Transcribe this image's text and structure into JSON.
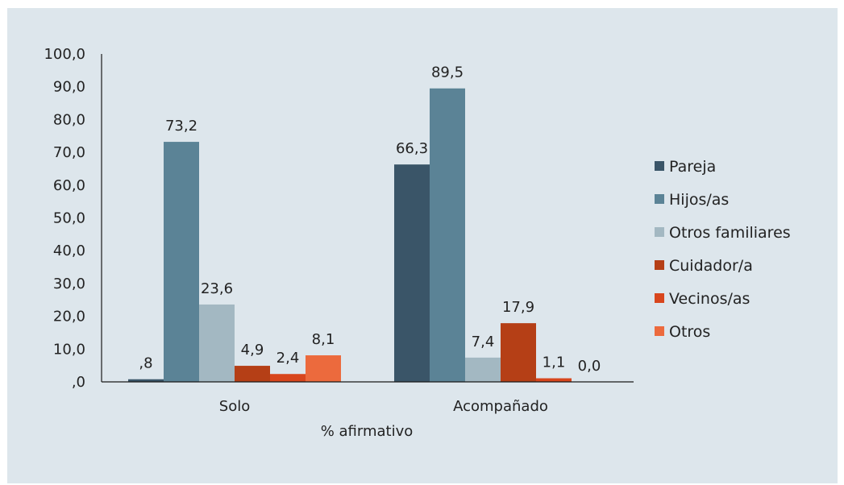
{
  "chart_data": {
    "type": "bar",
    "categories": [
      "Solo",
      "Acompañado"
    ],
    "series": [
      {
        "name": "Pareja",
        "values": [
          0.8,
          66.3
        ],
        "labels": [
          ",8",
          "66,3"
        ],
        "color": "#3a5568"
      },
      {
        "name": "Hijos/as",
        "values": [
          73.2,
          89.5
        ],
        "labels": [
          "73,2",
          "89,5"
        ],
        "color": "#5b8396"
      },
      {
        "name": "Otros familiares",
        "values": [
          23.6,
          7.4
        ],
        "labels": [
          "23,6",
          "7,4"
        ],
        "color": "#a3b8c2"
      },
      {
        "name": "Cuidador/a",
        "values": [
          4.9,
          17.9
        ],
        "labels": [
          "4,9",
          "17,9"
        ],
        "color": "#b53f16"
      },
      {
        "name": "Vecinos/as",
        "values": [
          2.4,
          1.1
        ],
        "labels": [
          "2,4",
          "1,1"
        ],
        "color": "#d8461d"
      },
      {
        "name": "Otros",
        "values": [
          8.1,
          0.0
        ],
        "labels": [
          "8,1",
          "0,0"
        ],
        "color": "#ec6a3d"
      }
    ],
    "y_ticks": [
      ",0",
      "10,0",
      "20,0",
      "30,0",
      "40,0",
      "50,0",
      "60,0",
      "70,0",
      "80,0",
      "90,0",
      "100,0"
    ],
    "ylim": [
      0,
      100
    ],
    "xlabel": "% afirmativo",
    "ylabel": "",
    "title": "",
    "grid": false,
    "legend_position": "right"
  }
}
